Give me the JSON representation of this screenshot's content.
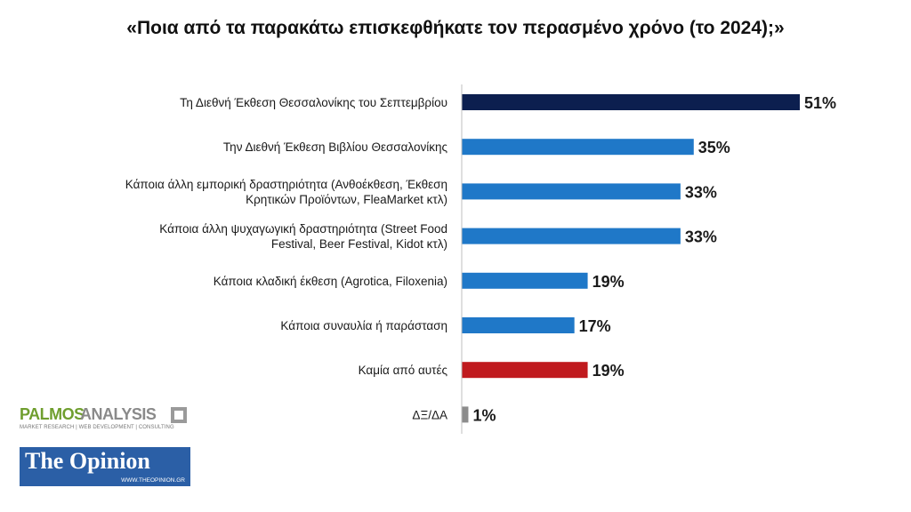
{
  "title": "«Ποια από τα παρακάτω επισκεφθήκατε τον περασμένο χρόνο (το 2024);»",
  "chart_data": {
    "type": "bar",
    "orientation": "horizontal",
    "categories": [
      [
        "Τη Διεθνή Έκθεση Θεσσαλονίκης του Σεπτεμβρίου"
      ],
      [
        "Την Διεθνή Έκθεση Βιβλίου Θεσσαλονίκης"
      ],
      [
        "Κάποια άλλη εμπορική δραστηριότητα (Ανθοέκθεση, Έκθεση",
        "Κρητικών Προϊόντων, FleaMarket κτλ)"
      ],
      [
        "Κάποια άλλη ψυχαγωγική δραστηριότητα (Street Food",
        "Festival, Beer Festival, Kidot κτλ)"
      ],
      [
        "Κάποια κλαδική έκθεση (Agrotica, Filoxenia)"
      ],
      [
        "Κάποια συναυλία ή παράσταση"
      ],
      [
        "Καμία από αυτές"
      ],
      [
        "ΔΞ/ΔΑ"
      ]
    ],
    "values": [
      51,
      35,
      33,
      33,
      19,
      17,
      19,
      1
    ],
    "value_labels": [
      "51%",
      "35%",
      "33%",
      "33%",
      "19%",
      "17%",
      "19%",
      "1%"
    ],
    "bar_colors": [
      "#0c1f4f",
      "#1f78c8",
      "#1f78c8",
      "#1f78c8",
      "#1f78c8",
      "#1f78c8",
      "#c01a1e",
      "#8c8c8c"
    ],
    "xlim": [
      0,
      51
    ],
    "grid": false,
    "legend": "none"
  },
  "logos": {
    "palmos_word_1": "PALMOS",
    "palmos_word_2": "ANALYSIS",
    "palmos_tagline": "MARKET RESEARCH | WEB DEVELOPMENT | CONSULTING",
    "opinion_name": "The Opinion",
    "opinion_url": "WWW.THEOPINION.GR"
  }
}
